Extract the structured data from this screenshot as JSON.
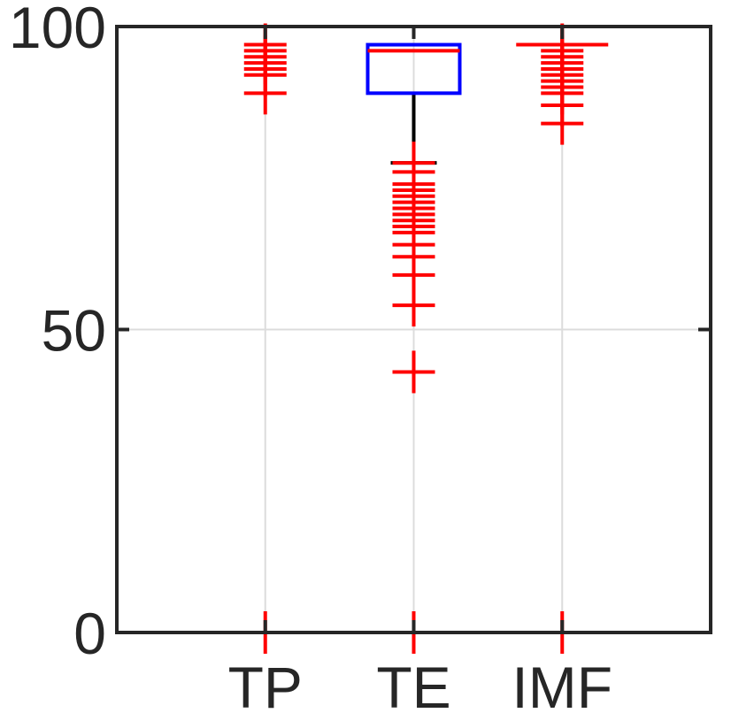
{
  "chart_data": {
    "type": "boxplot",
    "title": "",
    "xlabel": "",
    "ylabel": "",
    "categories": [
      "TP",
      "TE",
      "IMF"
    ],
    "ylim": [
      0,
      100
    ],
    "yticks": [
      0,
      50,
      100
    ],
    "grid": true,
    "legend": "none",
    "boxes": [
      {
        "name": "TP",
        "q1": 0,
        "median": 0,
        "q3": 0,
        "whisker_low": 0,
        "whisker_high": 0,
        "outliers": [
          0,
          89,
          92,
          93,
          94,
          95,
          96,
          97
        ]
      },
      {
        "name": "TE",
        "q1": 89,
        "median": 96,
        "q3": 97,
        "whisker_low": 77.5,
        "whisker_high": 97,
        "outliers": [
          0,
          43,
          54,
          59,
          62,
          64,
          66,
          67,
          68,
          69,
          70,
          71,
          72,
          73,
          74,
          76,
          77.5
        ]
      },
      {
        "name": "IMF",
        "q1": 97,
        "median": 97,
        "q3": 97,
        "whisker_low": 97,
        "whisker_high": 97,
        "outliers": [
          0,
          84,
          87,
          89,
          90,
          91,
          92,
          93,
          94,
          95,
          96,
          97
        ]
      }
    ],
    "colors": {
      "box": "#0000ff",
      "median": "#ff0000",
      "outlier": "#ff0000",
      "whisker": "#000000",
      "axis": "#262626",
      "grid": "#dcdcdc"
    }
  }
}
